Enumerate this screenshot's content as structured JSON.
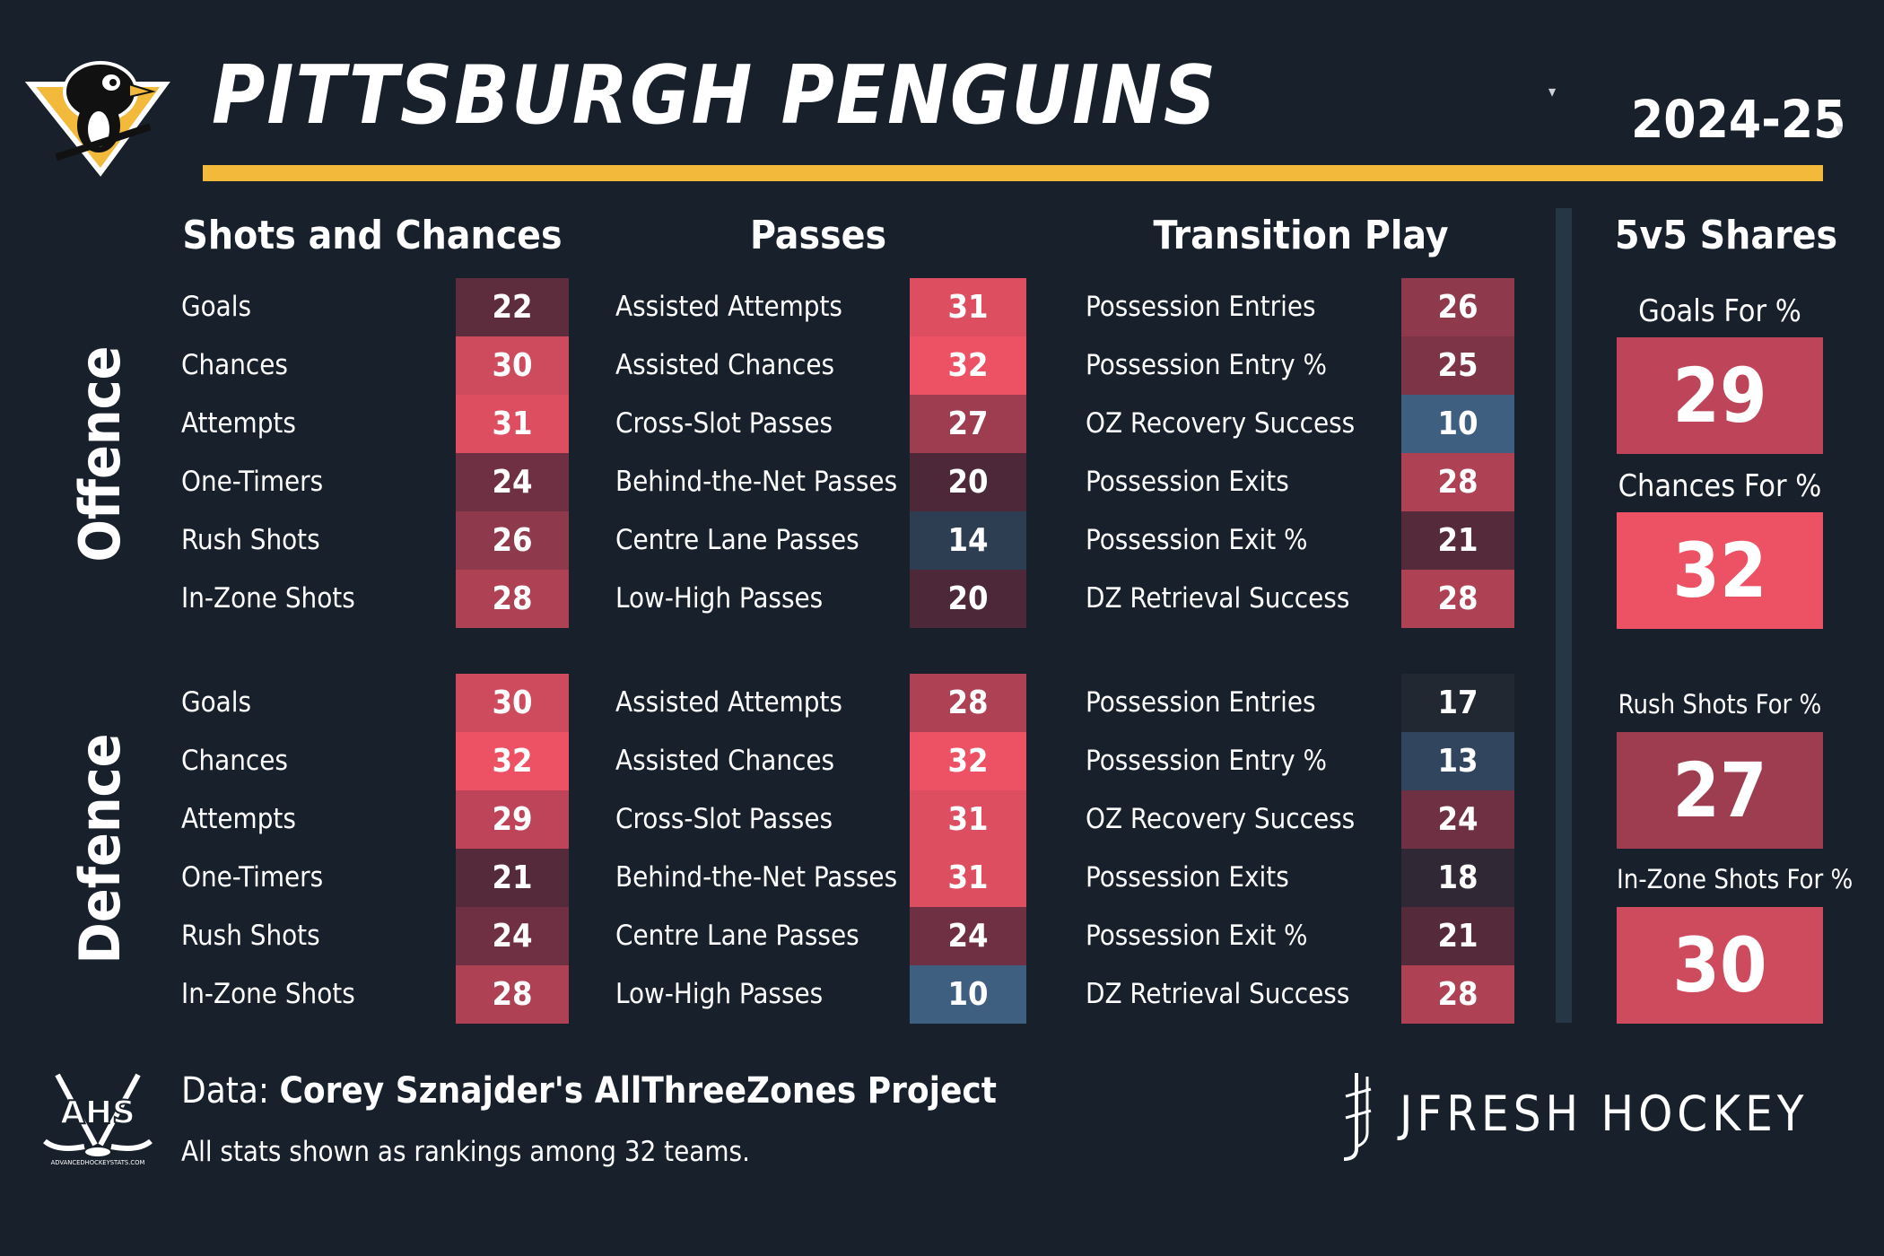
{
  "header": {
    "team": "PITTSBURGH PENGUINS",
    "season": "2024-25"
  },
  "sections": {
    "shots": "Shots and Chances",
    "passes": "Passes",
    "transition": "Transition Play",
    "shares": "5v5 Shares"
  },
  "side_labels": {
    "offence": "Offence",
    "defence": "Defence"
  },
  "offence": {
    "shots": [
      {
        "label": "Goals",
        "rank": 22
      },
      {
        "label": "Chances",
        "rank": 30
      },
      {
        "label": "Attempts",
        "rank": 31
      },
      {
        "label": "One-Timers",
        "rank": 24
      },
      {
        "label": "Rush Shots",
        "rank": 26
      },
      {
        "label": "In-Zone Shots",
        "rank": 28
      }
    ],
    "passes": [
      {
        "label": "Assisted Attempts",
        "rank": 31
      },
      {
        "label": "Assisted Chances",
        "rank": 32
      },
      {
        "label": "Cross-Slot Passes",
        "rank": 27
      },
      {
        "label": "Behind-the-Net Passes",
        "rank": 20
      },
      {
        "label": "Centre Lane Passes",
        "rank": 14
      },
      {
        "label": "Low-High Passes",
        "rank": 20
      }
    ],
    "transition": [
      {
        "label": "Possession Entries",
        "rank": 26
      },
      {
        "label": "Possession Entry %",
        "rank": 25
      },
      {
        "label": "OZ Recovery Success",
        "rank": 10
      },
      {
        "label": "Possession Exits",
        "rank": 28
      },
      {
        "label": "Possession Exit %",
        "rank": 21
      },
      {
        "label": "DZ Retrieval Success",
        "rank": 28
      }
    ]
  },
  "defence": {
    "shots": [
      {
        "label": "Goals",
        "rank": 30
      },
      {
        "label": "Chances",
        "rank": 32
      },
      {
        "label": "Attempts",
        "rank": 29
      },
      {
        "label": "One-Timers",
        "rank": 21
      },
      {
        "label": "Rush Shots",
        "rank": 24
      },
      {
        "label": "In-Zone Shots",
        "rank": 28
      }
    ],
    "passes": [
      {
        "label": "Assisted Attempts",
        "rank": 28
      },
      {
        "label": "Assisted Chances",
        "rank": 32
      },
      {
        "label": "Cross-Slot Passes",
        "rank": 31
      },
      {
        "label": "Behind-the-Net Passes",
        "rank": 31
      },
      {
        "label": "Centre Lane Passes",
        "rank": 24
      },
      {
        "label": "Low-High Passes",
        "rank": 10
      }
    ],
    "transition": [
      {
        "label": "Possession Entries",
        "rank": 17
      },
      {
        "label": "Possession Entry %",
        "rank": 13
      },
      {
        "label": "OZ Recovery Success",
        "rank": 24
      },
      {
        "label": "Possession Exits",
        "rank": 18
      },
      {
        "label": "Possession Exit %",
        "rank": 21
      },
      {
        "label": "DZ Retrieval Success",
        "rank": 28
      }
    ]
  },
  "shares": [
    {
      "label": "Goals For %",
      "rank": 29
    },
    {
      "label": "Chances For %",
      "rank": 32
    },
    {
      "label": "Rush Shots For %",
      "rank": 27
    },
    {
      "label": "In-Zone Shots For %",
      "rank": 30
    }
  ],
  "footer": {
    "data_prefix": "Data: ",
    "data_source": "Corey Sznajder's AllThreeZones Project",
    "note": "All stats shown as rankings among 32 teams.",
    "ahs_text": "AHS",
    "ahs_url": "ADVANCEDHOCKEYSTATS.COM",
    "brand": "JFRESH HOCKEY"
  },
  "colors": {
    "background": "#17202b",
    "accent_gold": "#f2b93b",
    "divider": "#273645"
  }
}
